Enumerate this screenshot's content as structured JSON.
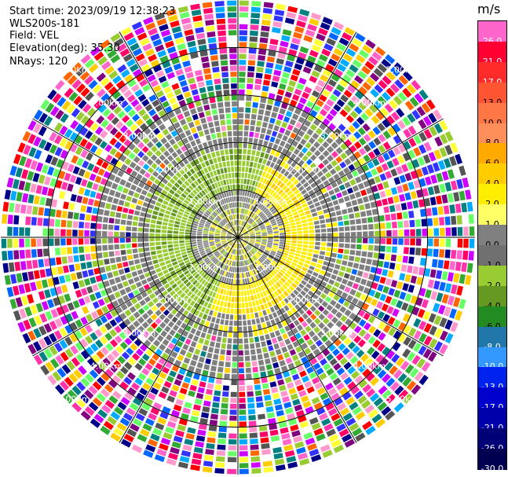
{
  "info": {
    "start_time": "Start time: 2023/09/19 12:38:23",
    "site": "WLS200s-181",
    "field": "Field: VEL",
    "elevation": "Elevation(deg): 35.30",
    "nrays": "NRays: 120"
  },
  "colorbar": {
    "unit": "m/s",
    "entries": [
      {
        "label": "26.0",
        "color": "#ff66cc"
      },
      {
        "label": "21.0",
        "color": "#ff0033"
      },
      {
        "label": "17.0",
        "color": "#ff2a2a"
      },
      {
        "label": "13.0",
        "color": "#ff5533"
      },
      {
        "label": "10.0",
        "color": "#ff7744"
      },
      {
        "label": "8.0",
        "color": "#ff8f5a"
      },
      {
        "label": "6.0",
        "color": "#ffaa00"
      },
      {
        "label": "4.0",
        "color": "#ffcc00"
      },
      {
        "label": "2.0",
        "color": "#ffee00"
      },
      {
        "label": "1.0",
        "color": "#ffff66"
      },
      {
        "label": "0.0",
        "color": "#808080"
      },
      {
        "label": "-1.0",
        "color": "#707070"
      },
      {
        "label": "-2.0",
        "color": "#99cc33"
      },
      {
        "label": "-4.0",
        "color": "#669922"
      },
      {
        "label": "-6.0",
        "color": "#228b22"
      },
      {
        "label": "-8.0",
        "color": "#2277aa"
      },
      {
        "label": "-10.0",
        "color": "#3399ff"
      },
      {
        "label": "-13.0",
        "color": "#0022ee"
      },
      {
        "label": "-17.0",
        "color": "#0000cc"
      },
      {
        "label": "-21.0",
        "color": "#0000aa"
      },
      {
        "label": "-26.0",
        "color": "#000077"
      },
      {
        "label": "-30.0",
        "color": "#000050"
      }
    ]
  },
  "range_labels": [
    "1.00km",
    "2.00km",
    "3.00km",
    "4.00km",
    "5.00km"
  ],
  "legend_colors": {
    "noise": [
      "#ff33aa",
      "#ff0066",
      "#ffcc00",
      "#33aa33",
      "#3333ff",
      "#000088",
      "#ff66cc",
      "#00aaff",
      "#cc00ff",
      "#ff6600",
      "#99cc33",
      "#ffff33",
      "#008080",
      "#800080",
      "#ff0000",
      "#0066ff",
      "#66ff66",
      "#ffffff",
      "#555555",
      "#ff99cc"
    ],
    "gray": "#7f7f7f",
    "green_light": "#99cc33",
    "green_dark": "#669922",
    "yellow": "#ffee00",
    "yellow_dark": "#ffcc00"
  }
}
